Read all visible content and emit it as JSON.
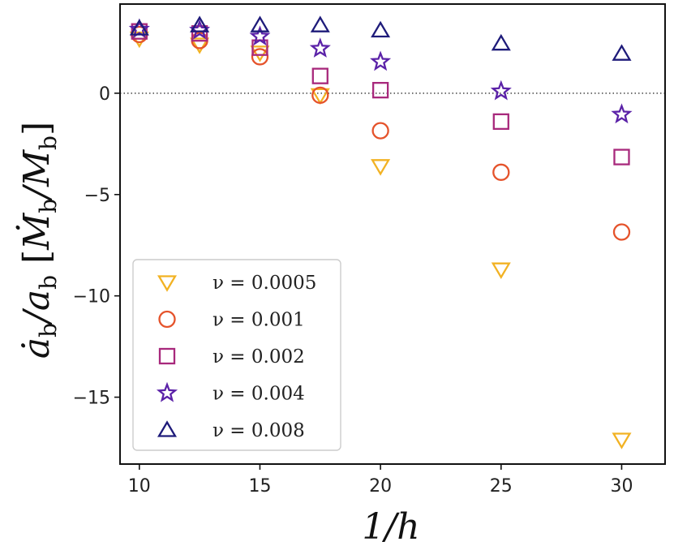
{
  "chart_data": {
    "type": "scatter",
    "title": "",
    "xlabel": "1/h",
    "ylabel": "ȧ_b/a_b [Ṁ_b/M_b]",
    "xlim": [
      9.2,
      31.8
    ],
    "ylim": [
      -18.3,
      4.4
    ],
    "x_ticks": [
      10,
      15,
      20,
      25,
      30
    ],
    "y_ticks": [
      0,
      -5,
      -10,
      -15
    ],
    "x_tick_labels": [
      "10",
      "15",
      "20",
      "25",
      "30"
    ],
    "y_tick_labels": [
      "0",
      "−5",
      "−10",
      "−15"
    ],
    "reference_line": {
      "y": 0,
      "style": "dotted",
      "color": "#333333"
    },
    "grid": false,
    "legend_position": "lower-left",
    "series": [
      {
        "name": "ν = 0.0005",
        "legend_label": "ν = 0.0005",
        "marker": "triangle-down",
        "color": "#F2B223",
        "x": [
          10,
          12.5,
          15,
          17.5,
          20,
          25,
          30
        ],
        "y": [
          2.7,
          2.4,
          2.0,
          -0.1,
          -3.6,
          -8.7,
          -17.1
        ]
      },
      {
        "name": "ν = 0.001",
        "legend_label": "ν = 0.001",
        "marker": "circle",
        "color": "#E5532B",
        "x": [
          10,
          12.5,
          15,
          17.5,
          20,
          25,
          30
        ],
        "y": [
          2.9,
          2.6,
          1.8,
          -0.1,
          -1.85,
          -3.9,
          -6.85
        ]
      },
      {
        "name": "ν = 0.002",
        "legend_label": "ν = 0.002",
        "marker": "square",
        "color": "#A8297C",
        "x": [
          10,
          12.5,
          15,
          17.5,
          20,
          25,
          30
        ],
        "y": [
          3.05,
          2.95,
          2.25,
          0.85,
          0.15,
          -1.4,
          -3.15
        ]
      },
      {
        "name": "ν = 0.004",
        "legend_label": "ν = 0.004",
        "marker": "star",
        "color": "#5B22A8",
        "x": [
          10,
          12.5,
          15,
          17.5,
          20,
          25,
          30
        ],
        "y": [
          3.15,
          3.1,
          2.8,
          2.2,
          1.55,
          0.1,
          -1.05
        ]
      },
      {
        "name": "ν = 0.008",
        "legend_label": "ν = 0.008",
        "marker": "triangle-up",
        "color": "#1E1B7A",
        "x": [
          10,
          12.5,
          15,
          17.5,
          20,
          25,
          30
        ],
        "y": [
          3.2,
          3.35,
          3.35,
          3.35,
          3.1,
          2.45,
          1.95
        ]
      }
    ]
  }
}
